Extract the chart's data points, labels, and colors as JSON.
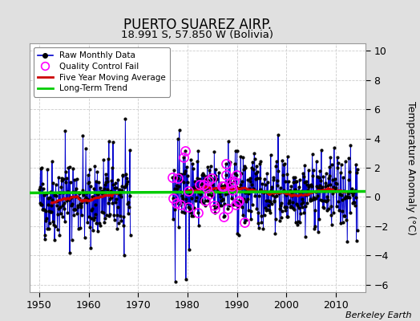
{
  "title": "PUERTO SUAREZ AIRP.",
  "subtitle": "18.991 S, 57.850 W (Bolivia)",
  "ylabel": "Temperature Anomaly (°C)",
  "credit": "Berkeley Earth",
  "xlim": [
    1948,
    2016
  ],
  "ylim": [
    -6.5,
    10.5
  ],
  "yticks": [
    -6,
    -4,
    -2,
    0,
    2,
    4,
    6,
    8,
    10
  ],
  "xticks": [
    1950,
    1960,
    1970,
    1980,
    1990,
    2000,
    2010
  ],
  "bg_color": "#e0e0e0",
  "plot_bg_color": "#ffffff",
  "raw_line_color": "#0000cc",
  "raw_marker_color": "#000000",
  "qc_fail_color": "#ff00ff",
  "moving_avg_color": "#cc0000",
  "trend_color": "#00cc00",
  "seed": 42
}
